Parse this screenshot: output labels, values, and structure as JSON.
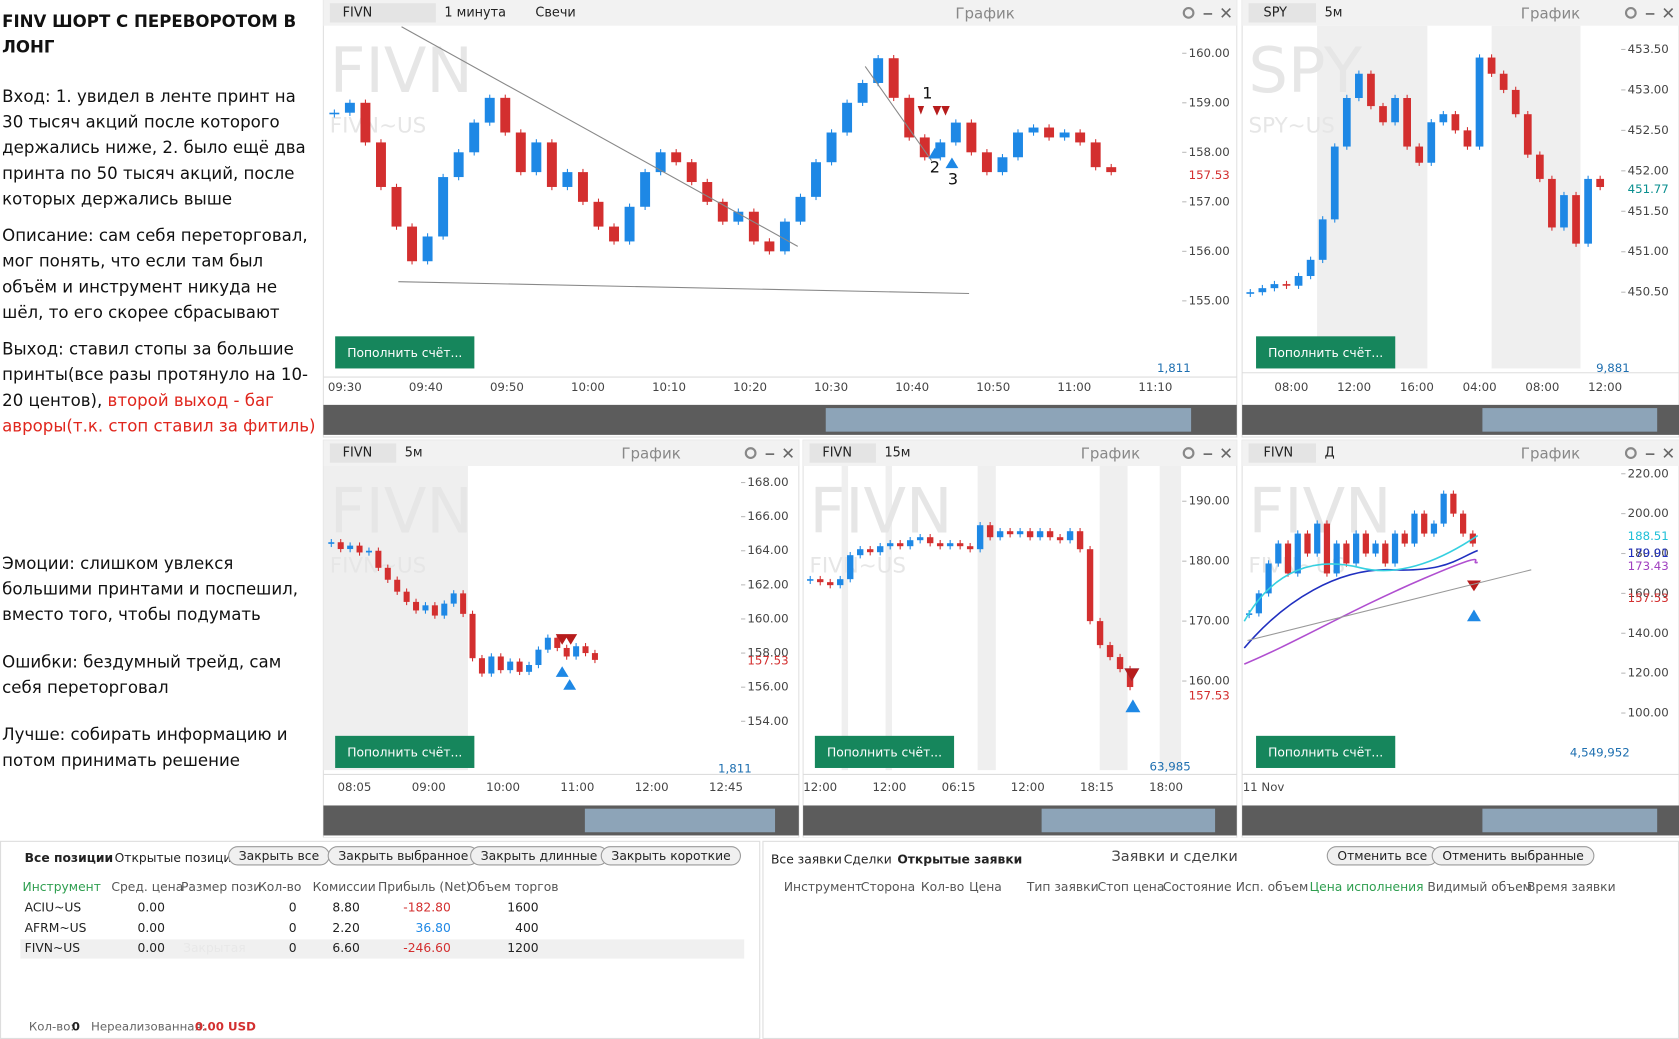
{
  "notes": {
    "title": "FINV ШОРТ С ПЕРЕВОРОТОМ В ЛОНГ",
    "entry": "Вход: 1. увидел в ленте принт на 30 тысяч акций после которого держались ниже, 2.        было ещё два принта по 50 тысяч акций, после которых держались выше",
    "description": "Описание: сам себя переторговал, мог понять, что если там был объём и инструмент никуда не шёл, то его скорее сбрасывают",
    "exit": {
      "text": "Выход: ставил стопы за большие принты(все разы протянуло на 10-20 центов), ",
      "highlight": "второй выход - баг авроры(т.к. стоп ставил за фитиль)"
    },
    "emotions": "Эмоции: слишком увлекся большими принтами и поспешил, вместо того, чтобы подумать",
    "errors": "Ошибки: бездумный трейд, сам себя  переторговал",
    "better": "Лучше: собирать информацию и потом принимать решение"
  },
  "charts": [
    {
      "symbol": "FIVN",
      "interval": "1 минута",
      "chart_type": "Свечи",
      "header": "График",
      "watermark": "FIVN",
      "watermark_sub": "FIVN~US",
      "ylim": [
        154.5,
        160.6
      ],
      "yticks": [
        {
          "value": 160,
          "label": "160.00"
        },
        {
          "value": 159,
          "label": "159.00"
        },
        {
          "value": 158,
          "label": "158.00"
        },
        {
          "value": 157,
          "label": "157.00"
        },
        {
          "value": 156,
          "label": "156.00"
        },
        {
          "value": 155,
          "label": "155.00"
        }
      ],
      "price_marks": [
        {
          "value": 157.53,
          "color": "#d32f2f"
        }
      ],
      "closes": [
        158.8,
        159.0,
        158.2,
        157.3,
        156.5,
        155.8,
        156.3,
        157.5,
        158.0,
        158.6,
        159.1,
        158.4,
        157.6,
        158.2,
        157.3,
        157.6,
        157.0,
        156.5,
        156.2,
        156.9,
        157.6,
        158.0,
        157.8,
        157.4,
        157.0,
        156.6,
        156.8,
        156.2,
        156.0,
        156.6,
        157.1,
        157.8,
        158.4,
        159.0,
        159.4,
        159.9,
        159.1,
        158.3,
        157.9,
        158.2,
        158.6,
        158.0,
        157.6,
        157.9,
        158.4,
        158.5,
        158.3,
        158.4,
        158.2,
        157.7,
        157.6
      ],
      "times": [
        "09:30",
        "09:40",
        "09:50",
        "10:00",
        "10:10",
        "10:20",
        "10:30",
        "10:40",
        "10:50",
        "11:00",
        "11:10"
      ],
      "volume_label": "1,811",
      "deposit_button": "Пополнить счёт...",
      "annotations": [
        "1",
        "2",
        "3"
      ]
    },
    {
      "symbol": "SPY",
      "interval": "5м",
      "header": "График",
      "watermark": "SPY",
      "watermark_sub": "SPY~US",
      "ylim": [
        450.14,
        453.82
      ],
      "yticks": [
        {
          "value": 453.5,
          "label": "453.50"
        },
        {
          "value": 453,
          "label": "453.00"
        },
        {
          "value": 452.5,
          "label": "452.50"
        },
        {
          "value": 452,
          "label": "452.00"
        },
        {
          "value": 451.5,
          "label": "451.50"
        },
        {
          "value": 451,
          "label": "451.00"
        },
        {
          "value": 450.5,
          "label": "450.50"
        }
      ],
      "price_marks": [
        {
          "value": 451.77,
          "color": "#0a8f8f"
        }
      ],
      "closes": [
        450.5,
        450.55,
        450.6,
        450.58,
        450.7,
        450.9,
        451.4,
        452.3,
        452.9,
        453.2,
        452.8,
        452.6,
        452.9,
        452.3,
        452.1,
        452.6,
        452.7,
        452.5,
        452.3,
        453.4,
        453.2,
        453.0,
        452.7,
        452.2,
        451.9,
        451.3,
        451.7,
        451.1,
        451.9,
        451.8
      ],
      "times": [
        "08:00",
        "12:00",
        "16:00",
        "04:00",
        "08:00",
        "12:00"
      ],
      "volume_label": "9,881",
      "deposit_button": "Пополнить счёт..."
    },
    {
      "symbol": "FIVN",
      "interval": "5м",
      "header": "График",
      "watermark": "FIVN",
      "watermark_sub": "FIVN~US",
      "ylim": [
        153.9,
        169.1
      ],
      "yticks": [
        {
          "value": 168,
          "label": "168.00"
        },
        {
          "value": 166,
          "label": "166.00"
        },
        {
          "value": 164,
          "label": "164.00"
        },
        {
          "value": 162,
          "label": "162.00"
        },
        {
          "value": 160,
          "label": "160.00"
        },
        {
          "value": 158,
          "label": "158.00"
        },
        {
          "value": 156,
          "label": "156.00"
        },
        {
          "value": 154,
          "label": "154.00"
        }
      ],
      "price_marks": [
        {
          "value": 157.53,
          "color": "#d32f2f"
        }
      ],
      "closes": [
        164.5,
        164.1,
        164.3,
        163.9,
        164.0,
        163.0,
        162.3,
        161.6,
        161.0,
        160.5,
        160.8,
        160.2,
        160.9,
        161.5,
        160.3,
        157.7,
        156.8,
        157.8,
        157.0,
        157.5,
        156.9,
        157.3,
        158.2,
        158.9,
        158.3,
        157.8,
        158.4,
        158.0,
        157.6
      ],
      "times": [
        "08:05",
        "09:00",
        "10:00",
        "11:00",
        "12:00",
        "12:45"
      ],
      "volume_label": "1,811",
      "deposit_button": "Пополнить счёт..."
    },
    {
      "symbol": "FIVN",
      "interval": "15м",
      "header": "График",
      "watermark": "FIVN",
      "watermark_sub": "FIVN~US",
      "ylim": [
        153,
        196.25
      ],
      "yticks": [
        {
          "value": 190,
          "label": "190.00"
        },
        {
          "value": 180,
          "label": "180.00"
        },
        {
          "value": 170,
          "label": "170.00"
        },
        {
          "value": 160,
          "label": "160.00"
        }
      ],
      "price_marks": [
        {
          "value": 157.53,
          "color": "#d32f2f"
        }
      ],
      "closes": [
        177,
        176.5,
        176,
        177,
        181,
        182,
        181.5,
        182.5,
        183,
        182.5,
        183.5,
        184,
        183,
        182.5,
        183,
        182.5,
        182,
        186,
        184,
        185,
        184.5,
        185,
        184,
        185,
        184,
        183.5,
        185,
        182,
        170,
        166,
        164,
        162,
        159
      ],
      "times": [
        "12:00",
        "12:00",
        "06:15",
        "12:00",
        "18:15",
        "18:00"
      ],
      "volume_label": "63,985",
      "deposit_button": "Пополнить счёт..."
    },
    {
      "symbol": "FIVN",
      "interval": "Д",
      "header": "График",
      "watermark": "FIVN",
      "watermark_sub": "FIVN~US",
      "ylim": [
        95,
        225
      ],
      "yticks": [
        {
          "value": 220,
          "label": "220.00"
        },
        {
          "value": 200,
          "label": "200.00"
        },
        {
          "value": 180,
          "label": "180.00"
        },
        {
          "value": 160,
          "label": "160.00"
        },
        {
          "value": 140,
          "label": "140.00"
        },
        {
          "value": 120,
          "label": "120.00"
        },
        {
          "value": 100,
          "label": "100.00"
        }
      ],
      "price_marks": [
        {
          "value": 188.51,
          "color": "#20c0d8"
        },
        {
          "value": 179.91,
          "color": "#2030c0"
        },
        {
          "value": 173.43,
          "color": "#a040c0"
        },
        {
          "value": 157.53,
          "color": "#d32f2f"
        }
      ],
      "closes": [
        150,
        160,
        175,
        185,
        170,
        190,
        180,
        195,
        170,
        185,
        175,
        190,
        180,
        185,
        175,
        190,
        185,
        200,
        190,
        195,
        210,
        200,
        190,
        185
      ],
      "times": [
        "11 Nov"
      ],
      "volume_label": "4,549,952",
      "deposit_button": "Пополнить счёт..."
    }
  ],
  "positions": {
    "tabs": [
      "Все позиции",
      "Открытые позиции"
    ],
    "buttons": [
      "Закрыть все",
      "Закрыть выбранное",
      "Закрыть длинные",
      "Закрыть короткие"
    ],
    "columns": [
      "Инструмент",
      "Сред. цена",
      "Размер пози",
      "Кол-во",
      "Комиссии",
      "Прибыль (Net)",
      "Объем торгов"
    ],
    "rows": [
      {
        "instrument": "ACIU~US",
        "avg_price": "0.00",
        "qty": "0",
        "commission": "8.80",
        "profit": "-182.80",
        "volume": "1600"
      },
      {
        "instrument": "AFRM~US",
        "avg_price": "0.00",
        "qty": "0",
        "commission": "2.20",
        "profit": "36.80",
        "volume": "400"
      },
      {
        "instrument": "FIVN~US",
        "avg_price": "0.00",
        "size": "Закрытая",
        "qty": "0",
        "commission": "6.60",
        "profit": "-246.60",
        "volume": "1200"
      }
    ],
    "footer": {
      "qty_label": "Кол-во:",
      "qty": "0",
      "unrealized_label": "Нереализованная:",
      "unrealized": "0.00 USD"
    }
  },
  "orders": {
    "tabs": [
      "Все заявки",
      "Сделки",
      "Открытые заявки"
    ],
    "title": "Заявки и сделки",
    "buttons": [
      "Отменить все",
      "Отменить выбранные"
    ],
    "columns": [
      "Инструмент",
      "Сторона",
      "Кол-во",
      "Цена",
      "Тип заявки",
      "Стоп цена",
      "Состояние",
      "Исп. объем",
      "Цена исполнения",
      "Видимый объем",
      "Время заявки"
    ]
  }
}
